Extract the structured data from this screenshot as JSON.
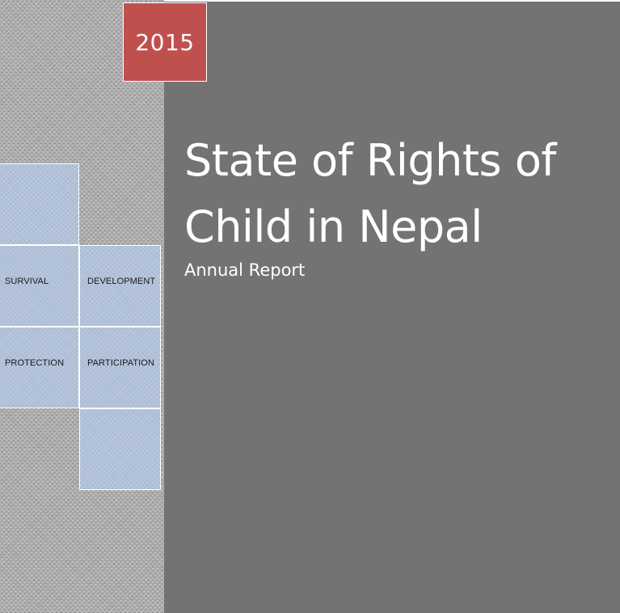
{
  "cover": {
    "year": "2015",
    "title_line1": "State of Rights of",
    "title_line2": "Child in Nepal",
    "subtitle": "Annual Report"
  },
  "tiles": {
    "survival": "SURVIVAL",
    "development": "DEVELOPMENT",
    "protection": "PROTECTION",
    "participation": "PARTICIPATION"
  },
  "colors": {
    "year_box": "#c0504d",
    "right_panel": "#737373",
    "tiles": "#aabedc"
  }
}
